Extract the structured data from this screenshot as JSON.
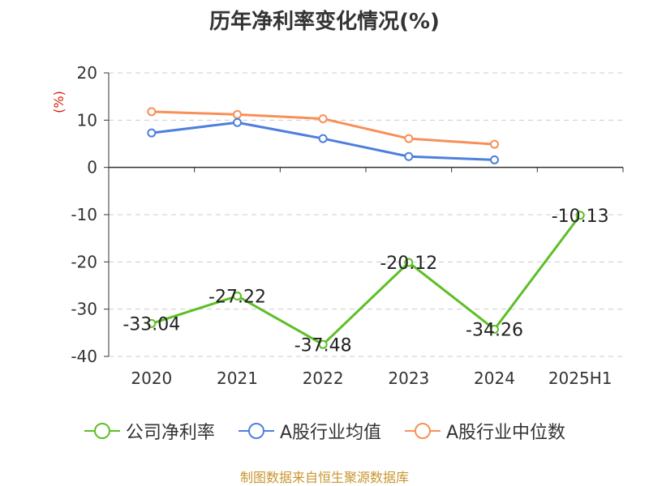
{
  "page": {
    "title": "历年净利率变化情况(%)",
    "source": "制图数据来自恒生聚源数据库"
  },
  "chart_data": {
    "type": "line",
    "title": "历年净利率变化情况(%)",
    "ylabel": "(%)",
    "xlabel": "",
    "categories": [
      "2020",
      "2021",
      "2022",
      "2023",
      "2024",
      "2025H1"
    ],
    "ylim": [
      -40,
      20
    ],
    "yticks": [
      20,
      10,
      0,
      -10,
      -20,
      -30,
      -40
    ],
    "grid": true,
    "legend_position": "bottom",
    "series": [
      {
        "name": "公司净利率",
        "color": "#5dbf26",
        "values": [
          -33.04,
          -27.22,
          -37.48,
          -20.12,
          -34.26,
          -10.13
        ],
        "labels": [
          "-33.04",
          "-27.22",
          "-37.48",
          "-20.12",
          "-34.26",
          "-10.13"
        ]
      },
      {
        "name": "A股行业均值",
        "color": "#4e7fde",
        "values": [
          7.3,
          9.5,
          6.1,
          2.3,
          1.6,
          null
        ]
      },
      {
        "name": "A股行业中位数",
        "color": "#f79058",
        "values": [
          11.8,
          11.2,
          10.3,
          6.1,
          4.9,
          null
        ]
      }
    ]
  }
}
